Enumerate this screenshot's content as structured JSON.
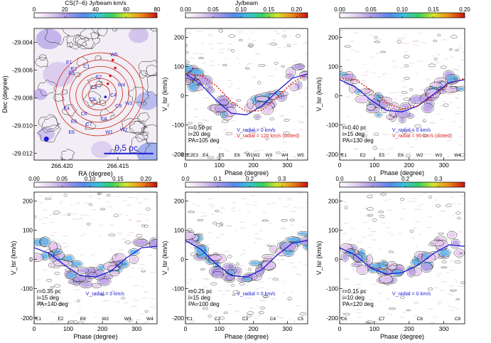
{
  "figure": {
    "panels": [
      {
        "id": "map",
        "colorbar_label": "CS(7–6) Jy/beam km/s",
        "colorbar_ticks": [
          "0",
          "20",
          "40",
          "60",
          "80"
        ],
        "xlabel": "RA (degree)",
        "ylabel": "Dec (degree)",
        "xticks": [
          "266.420",
          "266.415"
        ],
        "yticks": [
          "-29.004",
          "-29.006",
          "-29.008",
          "-29.010",
          "-29.012"
        ],
        "scalebar_label": "0.5 pc",
        "labels": [
          "W5",
          "E1",
          "E2",
          "E3",
          "C1",
          "C2",
          "C3",
          "C4",
          "C5",
          "C6",
          "C7",
          "C8",
          "C9",
          "E4",
          "E5",
          "E6",
          "W1",
          "W2",
          "W3",
          "W4"
        ]
      },
      {
        "id": "pv1",
        "colorbar_label": "Jy/beam",
        "colorbar_ticks": [
          "0.00",
          "0.05",
          "0.10",
          "0.15",
          "0.20"
        ],
        "info": [
          "r=0.50 pc",
          "i=20 deg",
          "PA=105 deg"
        ],
        "legend": [
          {
            "text": "V_radial = 0   km/s",
            "color": "#1a1ad6"
          },
          {
            "text": "V_radial = 120 km/s (dotted)",
            "color": "#e02020"
          }
        ],
        "tags": [
          "E1E2E3",
          "E4",
          "E5",
          "E6",
          "W1W2",
          "W3",
          "W4",
          "W5"
        ]
      },
      {
        "id": "pv2",
        "colorbar_label": "",
        "colorbar_ticks": [
          "0.00",
          "0.05",
          "0.10",
          "0.15",
          "0.20"
        ],
        "info": [
          "r=0.40 pc",
          "i=15 deg",
          "PA=130 deg"
        ],
        "legend": [
          {
            "text": "V_radial = 0   km/s",
            "color": "#1a1ad6"
          },
          {
            "text": "V_radial = 90 km/s (dotted)",
            "color": "#e02020"
          }
        ],
        "tags": [
          "E1",
          "E2",
          "E5",
          "E6",
          "W2",
          "W3",
          "W4"
        ]
      },
      {
        "id": "pv3",
        "colorbar_label": "",
        "colorbar_ticks": [
          "0.00",
          "0.05",
          "0.10",
          "0.15",
          "0.20"
        ],
        "info": [
          "r=0.35 pc",
          "i=15 deg",
          "PA=140 deg"
        ],
        "legend": [
          {
            "text": "V_radial = 0   km/s",
            "color": "#1a1ad6"
          }
        ],
        "tags": [
          "E1",
          "E2",
          "E6",
          "W2",
          "W3",
          "W4"
        ]
      },
      {
        "id": "pv4",
        "colorbar_label": "",
        "colorbar_ticks": [
          "0.0",
          "0.1",
          "0.2",
          "0.3"
        ],
        "info": [
          "r=0.25 pc",
          "i=15 deg",
          "PA=100 deg"
        ],
        "legend": [
          {
            "text": "V_radial = 0   km/s",
            "color": "#1a1ad6"
          }
        ],
        "tags": [
          "C1",
          "C2",
          "C3",
          "C4",
          "C5"
        ]
      },
      {
        "id": "pv5",
        "colorbar_label": "",
        "colorbar_ticks": [
          "0.0",
          "0.1",
          "0.2",
          "0.3"
        ],
        "info": [
          "r=0.15 pc",
          "i=10 deg",
          "PA=120 deg"
        ],
        "legend": [
          {
            "text": "V_radial = 0   km/s",
            "color": "#1a1ad6"
          }
        ],
        "tags": [
          "C6",
          "C7",
          "C8",
          "C9"
        ]
      }
    ],
    "pv_axes": {
      "xlabel": "Phase (degree)",
      "ylabel": "V_lsr (km/s)",
      "xticks": [
        "0",
        "100",
        "200",
        "300"
      ],
      "yticks": [
        "-200",
        "-100",
        "0",
        "100",
        "200"
      ]
    }
  },
  "chart_data": [
    {
      "type": "heatmap",
      "title": "",
      "colorbar": {
        "label": "CS(7–6) Jy/beam km/s",
        "range": [
          0,
          80
        ]
      },
      "xlabel": "RA (degree)",
      "ylabel": "Dec (degree)",
      "xlim": [
        266.4225,
        266.4115
      ],
      "ylim": [
        -29.0125,
        -29.003
      ],
      "annotations": [
        "0.5 pc"
      ]
    },
    {
      "type": "heatmap",
      "title": "",
      "colorbar": {
        "label": "Jy/beam",
        "range": [
          0,
          0.22
        ]
      },
      "xlabel": "Phase (degree)",
      "ylabel": "V_lsr (km/s)",
      "xlim": [
        0,
        360
      ],
      "ylim": [
        -220,
        230
      ],
      "series": [
        {
          "name": "V_radial = 0 km/s",
          "style": "solid",
          "x": [
            0,
            45,
            90,
            135,
            180,
            225,
            270,
            315,
            360
          ],
          "y": [
            75,
            40,
            -15,
            -60,
            -65,
            -35,
            15,
            60,
            75
          ]
        },
        {
          "name": "V_radial = 120 km/s (dotted)",
          "style": "dotted",
          "x": [
            0,
            45,
            90,
            135,
            180,
            225,
            270,
            315,
            360
          ],
          "y": [
            75,
            70,
            35,
            -20,
            -55,
            -50,
            -5,
            45,
            75
          ]
        }
      ]
    },
    {
      "type": "heatmap",
      "title": "",
      "colorbar": {
        "range": [
          0,
          0.2
        ]
      },
      "xlabel": "Phase (degree)",
      "ylabel": "V_lsr (km/s)",
      "xlim": [
        0,
        360
      ],
      "ylim": [
        -220,
        230
      ],
      "series": [
        {
          "name": "V_radial = 0 km/s",
          "style": "solid",
          "x": [
            0,
            45,
            90,
            135,
            180,
            225,
            270,
            315,
            360
          ],
          "y": [
            55,
            30,
            -15,
            -50,
            -55,
            -35,
            5,
            45,
            55
          ]
        },
        {
          "name": "V_radial = 90 km/s (dotted)",
          "style": "dotted",
          "x": [
            0,
            45,
            90,
            135,
            180,
            225,
            270,
            315,
            360
          ],
          "y": [
            60,
            55,
            20,
            -25,
            -45,
            -35,
            0,
            40,
            60
          ]
        }
      ]
    },
    {
      "type": "heatmap",
      "title": "",
      "colorbar": {
        "range": [
          0,
          0.22
        ]
      },
      "xlabel": "Phase (degree)",
      "ylabel": "V_lsr (km/s)",
      "xlim": [
        0,
        360
      ],
      "ylim": [
        -220,
        230
      ],
      "series": [
        {
          "name": "V_radial = 0 km/s",
          "style": "solid",
          "x": [
            0,
            45,
            90,
            135,
            180,
            225,
            270,
            315,
            360
          ],
          "y": [
            40,
            20,
            -20,
            -55,
            -60,
            -40,
            5,
            40,
            45
          ]
        }
      ]
    },
    {
      "type": "heatmap",
      "title": "",
      "colorbar": {
        "range": [
          0,
          0.38
        ]
      },
      "xlabel": "Phase (degree)",
      "ylabel": "V_lsr (km/s)",
      "xlim": [
        0,
        360
      ],
      "ylim": [
        -220,
        230
      ],
      "series": [
        {
          "name": "V_radial = 0 km/s",
          "style": "solid",
          "x": [
            0,
            45,
            90,
            135,
            180,
            225,
            270,
            315,
            360
          ],
          "y": [
            65,
            35,
            -15,
            -55,
            -60,
            -35,
            15,
            55,
            65
          ]
        }
      ]
    },
    {
      "type": "heatmap",
      "title": "",
      "colorbar": {
        "range": [
          0,
          0.38
        ]
      },
      "xlabel": "Phase (degree)",
      "ylabel": "V_lsr (km/s)",
      "xlim": [
        0,
        360
      ],
      "ylim": [
        -220,
        230
      ],
      "series": [
        {
          "name": "V_radial = 0 km/s",
          "style": "solid",
          "x": [
            0,
            45,
            90,
            135,
            180,
            225,
            270,
            315,
            360
          ],
          "y": [
            40,
            15,
            -30,
            -50,
            -45,
            -20,
            20,
            50,
            45
          ]
        }
      ]
    }
  ]
}
